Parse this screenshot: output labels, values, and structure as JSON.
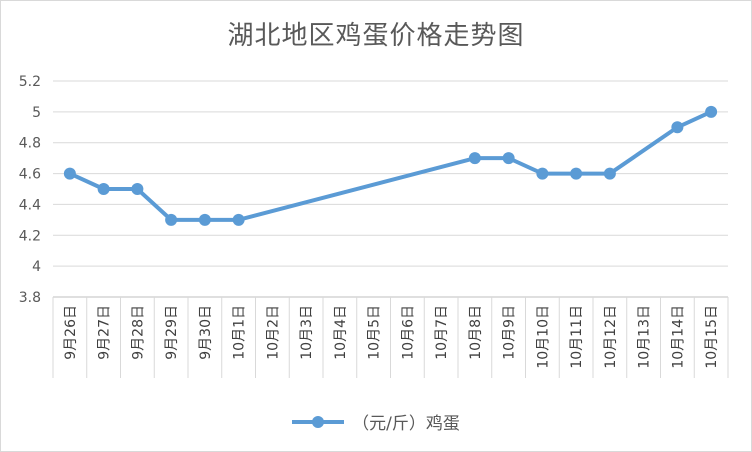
{
  "chart_data": {
    "type": "line",
    "title": "湖北地区鸡蛋价格走势图",
    "xlabel": "",
    "ylabel": "",
    "ylim": [
      3.8,
      5.2
    ],
    "yticks": [
      "3.8",
      "4",
      "4.2",
      "4.4",
      "4.6",
      "4.8",
      "5",
      "5.2"
    ],
    "grid": true,
    "legend_position": "bottom",
    "categories": [
      "9月26日",
      "9月27日",
      "9月28日",
      "9月29日",
      "9月30日",
      "10月1日",
      "10月2日",
      "10月3日",
      "10月4日",
      "10月5日",
      "10月6日",
      "10月7日",
      "10月8日",
      "10月9日",
      "10月10日",
      "10月11日",
      "10月12日",
      "10月13日",
      "10月14日",
      "10月15日"
    ],
    "series": [
      {
        "name": "（元/斤）鸡蛋",
        "color": "#5b9bd5",
        "values": [
          4.6,
          4.5,
          4.5,
          4.3,
          4.3,
          4.3,
          null,
          null,
          null,
          null,
          null,
          null,
          4.7,
          4.7,
          4.6,
          4.6,
          4.6,
          null,
          4.9,
          5.0
        ]
      }
    ]
  }
}
